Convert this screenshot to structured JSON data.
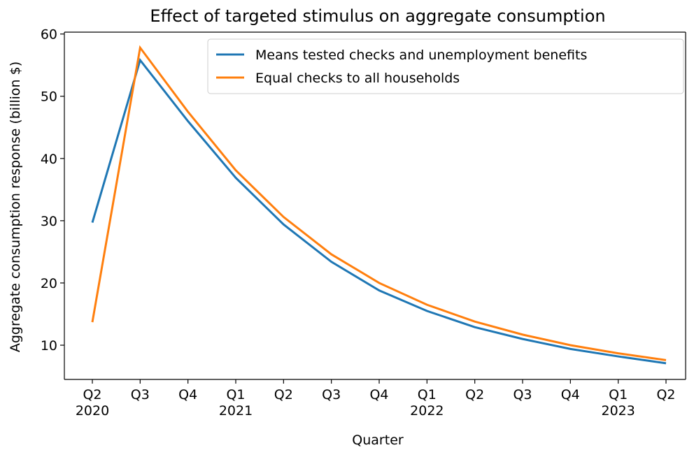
{
  "chart_data": {
    "type": "line",
    "title": "Effect of targeted stimulus on aggregate consumption",
    "x_label": "Quarter",
    "y_label": "Aggregate consumption response (billion $)",
    "categories": [
      "Q2\n2020",
      "Q3",
      "Q4",
      "Q1\n2021",
      "Q2",
      "Q3",
      "Q4",
      "Q1\n2022",
      "Q2",
      "Q3",
      "Q4",
      "Q1\n2023",
      "Q2"
    ],
    "series": [
      {
        "name": "Means tested checks and unemployment benefits",
        "color": "#1f77b4",
        "values": [
          29.7,
          55.8,
          46.0,
          36.9,
          29.4,
          23.4,
          18.8,
          15.5,
          12.9,
          11.0,
          9.4,
          8.2,
          7.1
        ]
      },
      {
        "name": "Equal checks to all households",
        "color": "#ff7f0e",
        "values": [
          13.7,
          57.8,
          47.5,
          38.1,
          30.6,
          24.6,
          20.0,
          16.5,
          13.8,
          11.7,
          10.0,
          8.7,
          7.6
        ]
      }
    ],
    "ylim": [
      4.5,
      60.3
    ],
    "yticks": [
      10,
      20,
      30,
      40,
      50,
      60
    ],
    "legend": "upper right",
    "grid": false
  }
}
